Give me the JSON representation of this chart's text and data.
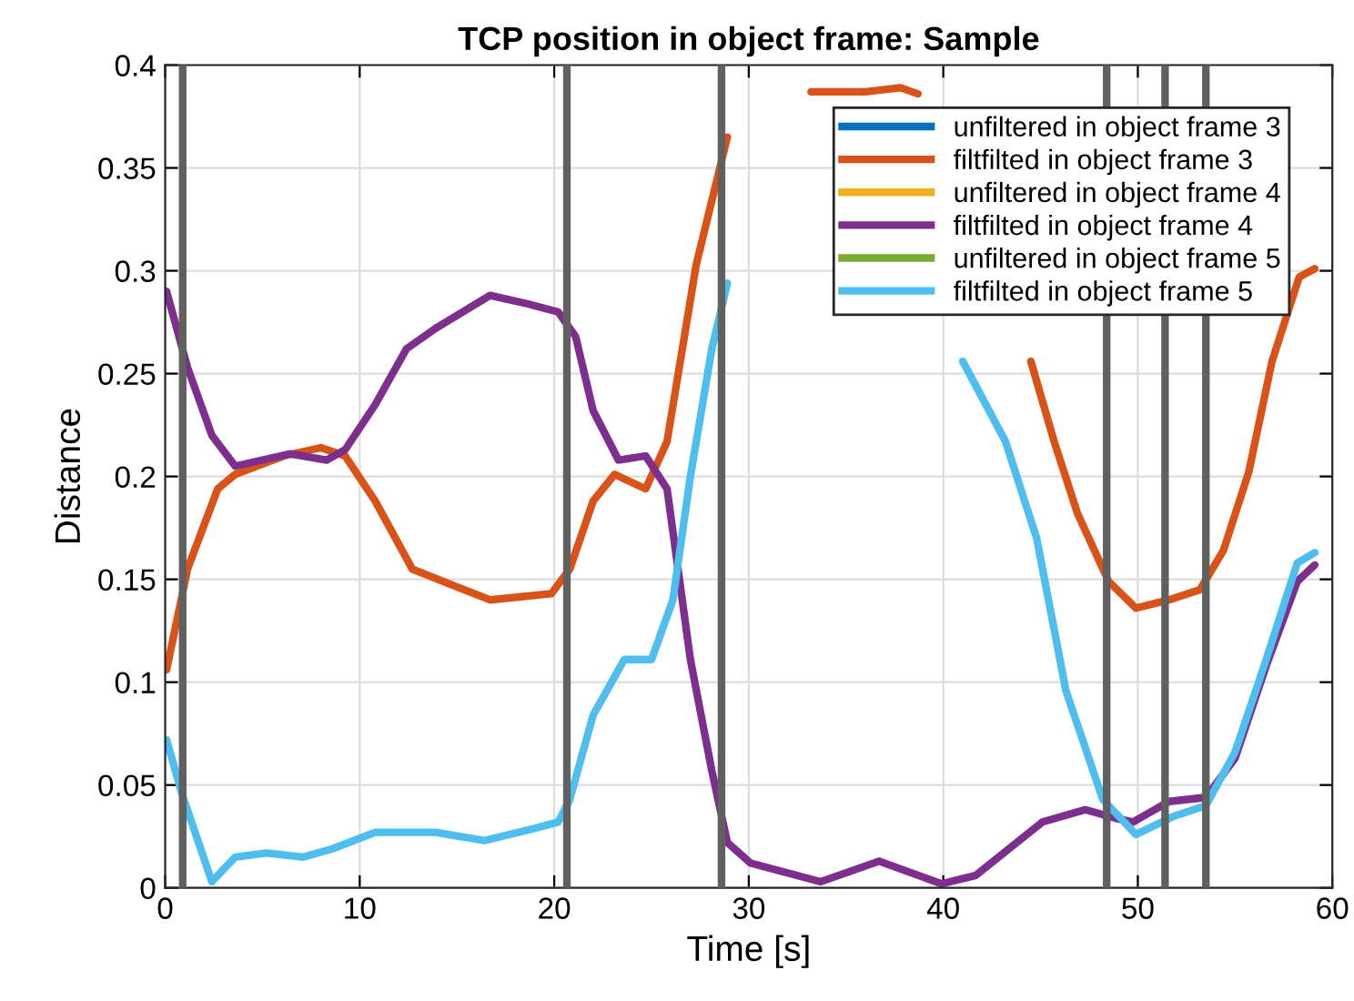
{
  "chart_data": {
    "type": "line",
    "title": "TCP position in object frame: Sample",
    "xlabel": "Time [s]",
    "ylabel": "Distance",
    "xlim": [
      0,
      60
    ],
    "xticks": [
      0,
      10,
      20,
      30,
      40,
      50,
      60
    ],
    "ylim": [
      0,
      0.4
    ],
    "yticks": [
      0,
      0.05,
      0.1,
      0.15,
      0.2,
      0.25,
      0.3,
      0.35,
      0.4
    ],
    "grid": true,
    "legend": "top right",
    "line_style": "solid",
    "marker": "none",
    "ref_lines": [
      {
        "axis": "x",
        "value": 0.9,
        "color": "#606060"
      },
      {
        "axis": "x",
        "value": 20.65,
        "color": "#606060"
      },
      {
        "axis": "x",
        "value": 28.6,
        "color": "#606060"
      },
      {
        "axis": "x",
        "value": 48.4,
        "color": "#606060"
      },
      {
        "axis": "x",
        "value": 51.4,
        "color": "#606060"
      },
      {
        "axis": "x",
        "value": 53.5,
        "color": "#606060"
      }
    ],
    "series": [
      {
        "name": "unfiltered in object frame 3",
        "color": "#0072bd"
      },
      {
        "name": "filtfilted in object frame 3",
        "color": "#d95319",
        "x": [
          0.07,
          1.15,
          2.7,
          3.6,
          6.1,
          8.0,
          9.25,
          10.8,
          12.7,
          14.55,
          16.7,
          19.85,
          20.8,
          22.0,
          23.1,
          24.7,
          25.8,
          27.3,
          28.9,
          29.5,
          33.2,
          36.0,
          37.8,
          38.7,
          41.0,
          44.5,
          45.7,
          46.9,
          48.5,
          49.9,
          51.6,
          53.2,
          54.4,
          55.7,
          56.9,
          58.3,
          59.1
        ],
        "values": [
          0.106,
          0.155,
          0.194,
          0.201,
          0.21,
          0.214,
          0.21,
          0.188,
          0.155,
          0.148,
          0.14,
          0.143,
          0.155,
          0.188,
          0.201,
          0.194,
          0.217,
          0.303,
          0.365,
          null,
          0.387,
          0.387,
          0.389,
          0.386,
          null,
          0.256,
          0.217,
          0.182,
          0.149,
          0.136,
          0.14,
          0.145,
          0.164,
          0.202,
          0.256,
          0.297,
          0.301
        ]
      },
      {
        "name": "unfiltered in object frame 4",
        "color": "#edb120"
      },
      {
        "name": "filtfilted in object frame 4",
        "color": "#7e2f8e",
        "x": [
          0.07,
          1.15,
          2.4,
          3.6,
          6.4,
          8.3,
          9.25,
          10.8,
          12.4,
          13.9,
          16.7,
          18.6,
          20.2,
          21.1,
          22.0,
          23.3,
          24.7,
          25.8,
          27.0,
          28.1,
          28.9,
          30.1,
          33.7,
          36.7,
          39.9,
          41.65,
          45.1,
          47.3,
          48.8,
          49.75,
          51.6,
          53.5,
          55.0,
          56.6,
          58.2,
          59.1
        ],
        "values": [
          0.29,
          0.253,
          0.22,
          0.205,
          0.211,
          0.208,
          0.213,
          0.235,
          0.262,
          0.272,
          0.288,
          0.284,
          0.28,
          0.268,
          0.232,
          0.208,
          0.21,
          0.194,
          0.111,
          0.057,
          0.022,
          0.012,
          0.003,
          0.013,
          0.002,
          0.006,
          0.032,
          0.038,
          0.034,
          0.032,
          0.042,
          0.044,
          0.063,
          0.108,
          0.149,
          0.157
        ]
      },
      {
        "name": "unfiltered in object frame 5",
        "color": "#77ac30"
      },
      {
        "name": "filtfilted in object frame 5",
        "color": "#4dbeee",
        "x": [
          0.07,
          0.85,
          2.4,
          3.6,
          5.2,
          7.1,
          8.6,
          10.8,
          13.9,
          16.4,
          18.6,
          20.2,
          20.8,
          22.0,
          23.6,
          25.0,
          26.1,
          27.0,
          28.1,
          28.9,
          35.0,
          41.0,
          43.2,
          44.8,
          46.3,
          48.2,
          49.9,
          51.9,
          53.5,
          55.0,
          56.6,
          58.2,
          59.1
        ],
        "values": [
          0.072,
          0.046,
          0.003,
          0.015,
          0.017,
          0.015,
          0.019,
          0.027,
          0.027,
          0.023,
          0.028,
          0.032,
          0.043,
          0.084,
          0.111,
          0.111,
          0.14,
          0.2,
          0.262,
          0.294,
          null,
          0.256,
          0.217,
          0.17,
          0.096,
          0.043,
          0.026,
          0.035,
          0.04,
          0.066,
          0.111,
          0.158,
          0.163
        ]
      }
    ]
  }
}
